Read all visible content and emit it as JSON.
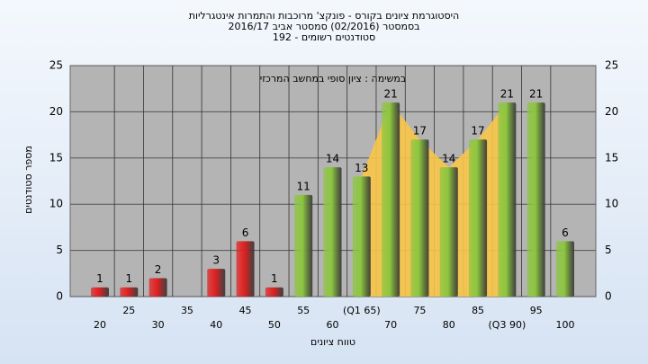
{
  "chart_data": {
    "type": "bar",
    "title": "היסטוגרמת ציונים בקורס - פונקצ' מרוכבות והתמרות אינטגרליות",
    "subtitle": "בסמסטר  (02/2016)  סמסטר אביב 2016/17",
    "subtitle2": "סטודנטים רשומים - 192",
    "annotation": "במשימה : ציון סופי במחשב המרכזי",
    "ylabel": "מספר סטודנטים",
    "xlabel": "טווח ציונים",
    "categories": [
      "20",
      "25",
      "30",
      "35",
      "40",
      "45",
      "50",
      "55",
      "60",
      "(Q1 65)",
      "70",
      "75",
      "80",
      "85",
      "(Q3 90)",
      "95",
      "100"
    ],
    "values": [
      1,
      1,
      2,
      null,
      3,
      6,
      1,
      11,
      14,
      13,
      21,
      17,
      14,
      17,
      21,
      21,
      6
    ],
    "colors": [
      "#e02020",
      "#e02020",
      "#e02020",
      "#e02020",
      "#e02020",
      "#e02020",
      "#e02020",
      "#8cc63f",
      "#8cc63f",
      "#8cc63f",
      "#8cc63f",
      "#8cc63f",
      "#8cc63f",
      "#8cc63f",
      "#8cc63f",
      "#8cc63f",
      "#8cc63f"
    ],
    "ylim": [
      0,
      25
    ],
    "yticks": [
      0,
      5,
      10,
      15,
      20,
      25
    ],
    "y2lim": [
      0,
      25
    ],
    "y2ticks": [
      0,
      5,
      10,
      15,
      20,
      25
    ],
    "grid": true
  }
}
